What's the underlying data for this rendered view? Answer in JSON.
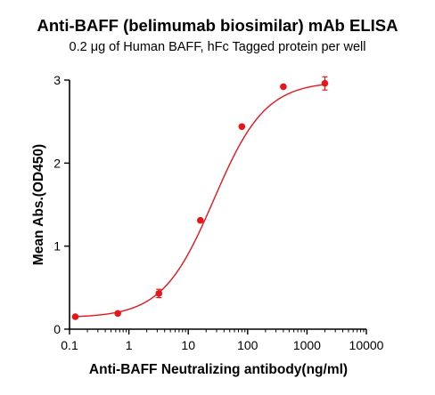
{
  "chart_data": {
    "type": "scatter",
    "title": "Anti-BAFF (belimumab biosimilar) mAb ELISA",
    "subtitle": "0.2 μg of Human BAFF, hFc Tagged protein per well",
    "xlabel": "Anti-BAFF Neutralizing antibody(ng/ml)",
    "ylabel": "Mean Abs.(OD450)",
    "x_scale": "log",
    "xlim": [
      0.1,
      10000
    ],
    "ylim": [
      0,
      3
    ],
    "x_ticks": [
      {
        "value": 0.1,
        "label": "0.1"
      },
      {
        "value": 1,
        "label": "1"
      },
      {
        "value": 10,
        "label": "10"
      },
      {
        "value": 100,
        "label": "100"
      },
      {
        "value": 1000,
        "label": "1000"
      },
      {
        "value": 10000,
        "label": "10000"
      }
    ],
    "y_ticks": [
      {
        "value": 0,
        "label": "0"
      },
      {
        "value": 1,
        "label": "1"
      },
      {
        "value": 2,
        "label": "2"
      },
      {
        "value": 3,
        "label": "3"
      }
    ],
    "grid": false,
    "color": "#e8151b",
    "series": [
      {
        "x": [
          0.125,
          0.65,
          3.2,
          16,
          80,
          400,
          2000
        ],
        "y": [
          0.15,
          0.19,
          0.43,
          1.31,
          2.44,
          2.92,
          2.96
        ],
        "error": [
          0.01,
          0.015,
          0.05,
          0.02,
          0.02,
          0.015,
          0.08
        ]
      }
    ],
    "fit": {
      "bottom": 0.138,
      "top": 2.985,
      "ec50": 27,
      "hill": 1.0
    }
  }
}
